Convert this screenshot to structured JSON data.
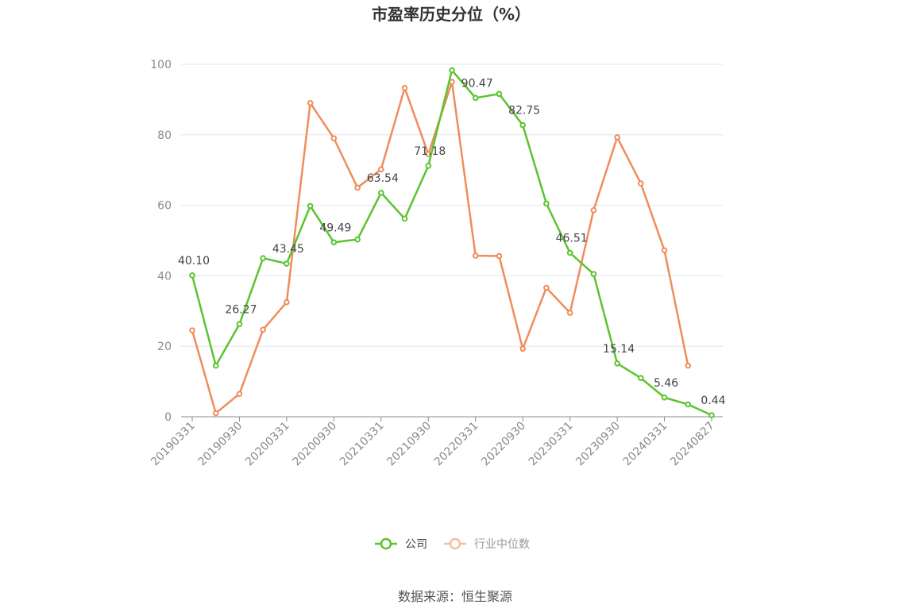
{
  "chart_data": {
    "type": "line",
    "title": "市盈率历史分位（%）",
    "ylim": [
      0,
      100
    ],
    "yticks": [
      "0",
      "20",
      "40",
      "60",
      "80",
      "100"
    ],
    "xtick_labels": [
      "20190331",
      "20190930",
      "20200331",
      "20200930",
      "20210331",
      "20210930",
      "20220331",
      "20220930",
      "20230331",
      "20230930",
      "20240331",
      "20240827"
    ],
    "grid": "horizontal",
    "legend_position": "bottom-center",
    "series": [
      {
        "name": "公司",
        "color": "#5ac42f",
        "values": [
          40.1,
          14.5,
          26.27,
          45.0,
          43.45,
          59.8,
          49.49,
          50.3,
          63.54,
          56.2,
          71.18,
          98.3,
          90.47,
          91.6,
          82.75,
          60.5,
          46.51,
          40.5,
          15.14,
          11.0,
          5.46,
          3.5,
          0.44
        ],
        "labels": [
          "40.10",
          "",
          "26.27",
          "",
          "43.45",
          "",
          "49.49",
          "",
          "63.54",
          "",
          "71.18",
          "",
          "90.47",
          "",
          "82.75",
          "",
          "46.51",
          "",
          "15.14",
          "",
          "5.46",
          "",
          "0.44"
        ]
      },
      {
        "name": "行业中位数",
        "color": "#ef8d5b",
        "values": [
          24.5,
          1.0,
          6.5,
          24.7,
          32.5,
          89.0,
          79.0,
          65.0,
          70.2,
          93.3,
          74.5,
          95.0,
          45.7,
          45.6,
          19.3,
          36.6,
          29.5,
          58.6,
          79.3,
          66.2,
          47.2,
          14.5,
          null
        ]
      }
    ]
  },
  "source_text": "数据来源：恒生聚源"
}
